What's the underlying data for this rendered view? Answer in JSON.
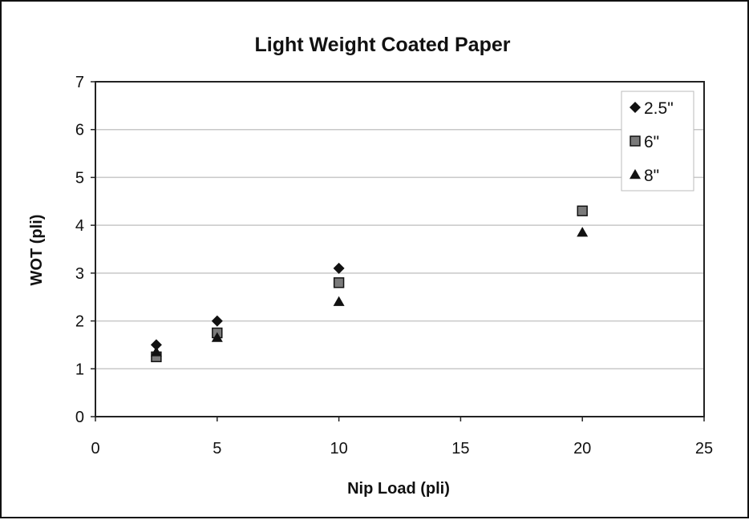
{
  "chart_data": {
    "type": "scatter",
    "title": "Light Weight Coated Paper",
    "xlabel": "Nip Load (pli)",
    "ylabel": "WOT (pli)",
    "xlim": [
      0,
      25
    ],
    "ylim": [
      0,
      7
    ],
    "xticks": [
      "0",
      "5",
      "10",
      "15",
      "20",
      "25"
    ],
    "yticks": [
      "0",
      "1",
      "2",
      "3",
      "4",
      "5",
      "6",
      "7"
    ],
    "grid": "horizontal",
    "legend_position": "top-right",
    "series": [
      {
        "name": "2.5\"",
        "marker": "diamond",
        "color": "#111111",
        "x": [
          2.5,
          5,
          10
        ],
        "y": [
          1.5,
          2.0,
          3.1
        ]
      },
      {
        "name": "6\"",
        "marker": "square",
        "color": "#777777",
        "x": [
          2.5,
          5,
          10,
          20
        ],
        "y": [
          1.25,
          1.75,
          2.8,
          4.3
        ]
      },
      {
        "name": "8\"",
        "marker": "triangle",
        "color": "#111111",
        "x": [
          2.5,
          5,
          10,
          20
        ],
        "y": [
          1.35,
          1.65,
          2.4,
          3.85
        ]
      }
    ]
  }
}
